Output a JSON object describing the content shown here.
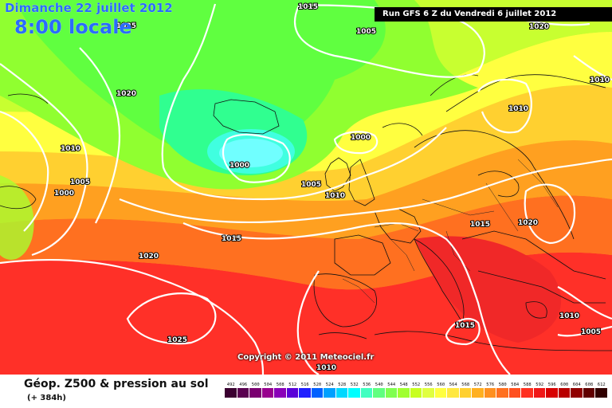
{
  "header": {
    "date": "Dimanche 22 juillet 2012",
    "time": "8:00 locale",
    "run": "Run GFS 6 Z du Vendredi 6 juillet 2012"
  },
  "copyright": "Copyright © 2011 Meteociel.fr",
  "footer": {
    "product": "Géop. Z500 & pression au sol",
    "lead": "(+ 384h)"
  },
  "isobar_labels": [
    "1015",
    "1025",
    "1005",
    "1020",
    "1020",
    "1010",
    "1010",
    "1000",
    "1005",
    "1000",
    "1010",
    "1000",
    "1005",
    "1010",
    "1015",
    "1020",
    "1015",
    "1020",
    "1015",
    "1010",
    "1025",
    "1010",
    "1005"
  ],
  "scale": {
    "values": [
      "492",
      "496",
      "500",
      "504",
      "508",
      "512",
      "516",
      "520",
      "524",
      "528",
      "532",
      "536",
      "540",
      "544",
      "548",
      "552",
      "556",
      "560",
      "564",
      "568",
      "572",
      "576",
      "580",
      "584",
      "588",
      "592",
      "596",
      "600",
      "604",
      "608",
      "612"
    ],
    "colors": [
      "#3a0030",
      "#5a0050",
      "#7a0070",
      "#98008e",
      "#8a00b8",
      "#5a00d8",
      "#2020ff",
      "#0060ff",
      "#00a0ff",
      "#00d8ff",
      "#00ffff",
      "#40ffc0",
      "#60ff80",
      "#80ff50",
      "#a0ff30",
      "#c8ff20",
      "#e0ff40",
      "#ffff40",
      "#ffe840",
      "#ffd030",
      "#ffb020",
      "#ff9020",
      "#ff7020",
      "#ff5020",
      "#ff3020",
      "#f01818",
      "#d80000",
      "#b80000",
      "#900000",
      "#600000",
      "#300000"
    ]
  }
}
